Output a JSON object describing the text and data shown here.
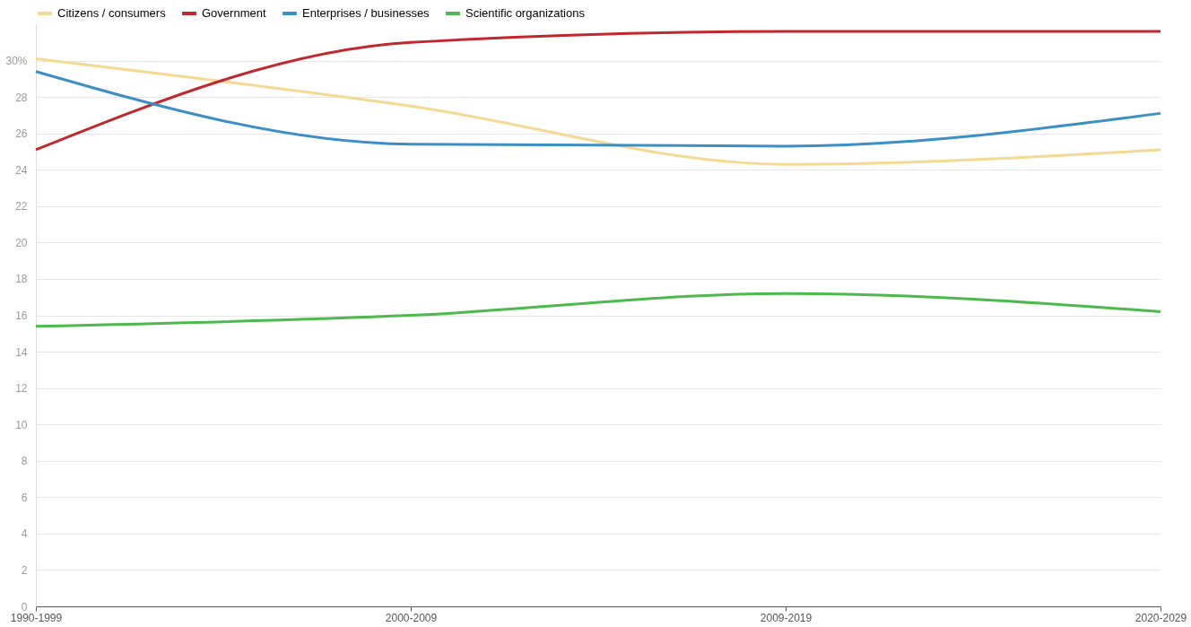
{
  "chart_data": {
    "type": "line",
    "categories": [
      "1990-1999",
      "2000-2009",
      "2009-2019",
      "2020-2029"
    ],
    "series": [
      {
        "name": "Citizens / consumers",
        "color": "#f5d990",
        "values": [
          30.1,
          27.5,
          24.3,
          25.1
        ]
      },
      {
        "name": "Government",
        "color": "#c0282d",
        "values": [
          25.1,
          31.0,
          31.6,
          31.6
        ]
      },
      {
        "name": "Enterprises / businesses",
        "color": "#3a8fc4",
        "values": [
          29.4,
          25.4,
          25.3,
          27.1
        ]
      },
      {
        "name": "Scientific organizations",
        "color": "#4cb94c",
        "values": [
          15.4,
          16.0,
          17.2,
          16.2
        ]
      }
    ],
    "ylim": [
      0,
      32
    ],
    "yticks": [
      0,
      2,
      4,
      6,
      8,
      10,
      12,
      14,
      16,
      18,
      20,
      22,
      24,
      26,
      28,
      {
        "value": 30,
        "label": "30%"
      }
    ],
    "grid": "y",
    "legend": "top left",
    "marker": "none",
    "line_style": "solid"
  }
}
